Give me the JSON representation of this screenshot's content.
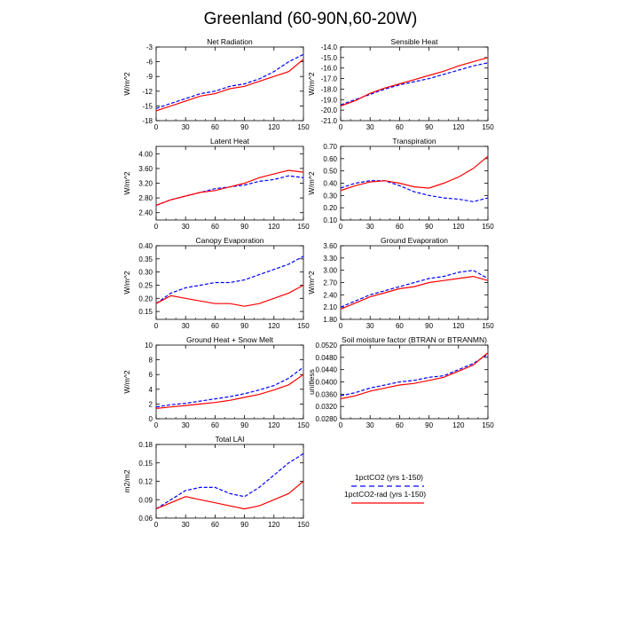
{
  "figure": {
    "title": "Greenland (60-90N,60-20W)"
  },
  "legend": {
    "entries": [
      {
        "label": "1pctCO2 (yrs 1-150)",
        "color": "#0000ff",
        "dash": "dashed"
      },
      {
        "label": "1pctCO2-rad (yrs 1-150)",
        "color": "#ff0000",
        "dash": "solid"
      }
    ]
  },
  "chart_data": [
    {
      "type": "line",
      "title": "Net Radiation",
      "ylabel": "W/m^2",
      "xlim": [
        0,
        150
      ],
      "ylim": [
        -18,
        -3
      ],
      "xticks": [
        0,
        30,
        60,
        90,
        120,
        150
      ],
      "xtick_labels": [
        "0",
        "30",
        "60",
        "90",
        "120",
        "150"
      ],
      "yticks": [
        -18,
        -15,
        -12,
        -9,
        -6,
        -3
      ],
      "ytick_labels": [
        "-18",
        "-15",
        "-12",
        "-9",
        "-6",
        "-3"
      ],
      "grid": false,
      "series": [
        {
          "name": "1pctCO2 (yrs 1-150)",
          "color": "#0000ff",
          "dash": "dashed",
          "x": [
            0,
            15,
            30,
            45,
            60,
            75,
            90,
            105,
            120,
            135,
            150
          ],
          "y": [
            -15.5,
            -14.5,
            -13.5,
            -12.5,
            -12,
            -11,
            -10.5,
            -9.5,
            -8,
            -6,
            -4.5
          ]
        },
        {
          "name": "1pctCO2-rad (yrs 1-150)",
          "color": "#ff0000",
          "dash": "solid",
          "x": [
            0,
            15,
            30,
            45,
            60,
            75,
            90,
            105,
            120,
            135,
            150
          ],
          "y": [
            -16,
            -15,
            -14,
            -13,
            -12.5,
            -11.5,
            -11,
            -10,
            -9,
            -8,
            -5.5
          ]
        }
      ]
    },
    {
      "type": "line",
      "title": "Sensible Heat",
      "ylabel": "W/m^2",
      "xlim": [
        0,
        150
      ],
      "ylim": [
        -21,
        -14
      ],
      "xticks": [
        0,
        30,
        60,
        90,
        120,
        150
      ],
      "xtick_labels": [
        "0",
        "30",
        "60",
        "90",
        "120",
        "150"
      ],
      "yticks": [
        -21,
        -20,
        -19,
        -18,
        -17,
        -16,
        -15,
        -14
      ],
      "ytick_labels": [
        "-21.0",
        "-20.0",
        "-19.0",
        "-18.0",
        "-17.0",
        "-16.0",
        "-15.0",
        "-14.0"
      ],
      "grid": false,
      "series": [
        {
          "name": "1pctCO2 (yrs 1-150)",
          "color": "#0000ff",
          "dash": "dashed",
          "x": [
            0,
            15,
            30,
            45,
            60,
            75,
            90,
            105,
            120,
            135,
            150
          ],
          "y": [
            -19.5,
            -19,
            -18.5,
            -18,
            -17.6,
            -17.3,
            -17,
            -16.6,
            -16.2,
            -15.8,
            -15.5
          ]
        },
        {
          "name": "1pctCO2-rad (yrs 1-150)",
          "color": "#ff0000",
          "dash": "solid",
          "x": [
            0,
            15,
            30,
            45,
            60,
            75,
            90,
            105,
            120,
            135,
            150
          ],
          "y": [
            -19.6,
            -19.1,
            -18.4,
            -17.9,
            -17.5,
            -17.1,
            -16.7,
            -16.3,
            -15.8,
            -15.4,
            -15
          ]
        }
      ]
    },
    {
      "type": "line",
      "title": "Latent Heat",
      "ylabel": "W/m^2",
      "xlim": [
        0,
        150
      ],
      "ylim": [
        2.2,
        4.2
      ],
      "xticks": [
        0,
        30,
        60,
        90,
        120,
        150
      ],
      "xtick_labels": [
        "0",
        "30",
        "60",
        "90",
        "120",
        "150"
      ],
      "yticks": [
        2.4,
        2.8,
        3.2,
        3.6,
        4.0
      ],
      "ytick_labels": [
        "2.40",
        "2.80",
        "3.20",
        "3.60",
        "4.00"
      ],
      "grid": false,
      "series": [
        {
          "name": "1pctCO2 (yrs 1-150)",
          "color": "#0000ff",
          "dash": "dashed",
          "x": [
            0,
            15,
            30,
            45,
            60,
            75,
            90,
            105,
            120,
            135,
            150
          ],
          "y": [
            2.6,
            2.75,
            2.85,
            2.95,
            3.05,
            3.1,
            3.15,
            3.25,
            3.3,
            3.4,
            3.35
          ]
        },
        {
          "name": "1pctCO2-rad (yrs 1-150)",
          "color": "#ff0000",
          "dash": "solid",
          "x": [
            0,
            15,
            30,
            45,
            60,
            75,
            90,
            105,
            120,
            135,
            150
          ],
          "y": [
            2.6,
            2.75,
            2.85,
            2.95,
            3.0,
            3.1,
            3.2,
            3.35,
            3.45,
            3.55,
            3.5
          ]
        }
      ]
    },
    {
      "type": "line",
      "title": "Transpiration",
      "ylabel": "W/m^2",
      "xlim": [
        0,
        150
      ],
      "ylim": [
        0.1,
        0.7
      ],
      "xticks": [
        0,
        30,
        60,
        90,
        120,
        150
      ],
      "xtick_labels": [
        "0",
        "30",
        "60",
        "90",
        "120",
        "150"
      ],
      "yticks": [
        0.1,
        0.2,
        0.3,
        0.4,
        0.5,
        0.6,
        0.7
      ],
      "ytick_labels": [
        "0.10",
        "0.20",
        "0.30",
        "0.40",
        "0.50",
        "0.60",
        "0.70"
      ],
      "grid": false,
      "series": [
        {
          "name": "1pctCO2 (yrs 1-150)",
          "color": "#0000ff",
          "dash": "dashed",
          "x": [
            0,
            15,
            30,
            45,
            60,
            75,
            90,
            105,
            120,
            135,
            150
          ],
          "y": [
            0.36,
            0.4,
            0.42,
            0.42,
            0.38,
            0.33,
            0.3,
            0.28,
            0.27,
            0.25,
            0.28
          ]
        },
        {
          "name": "1pctCO2-rad (yrs 1-150)",
          "color": "#ff0000",
          "dash": "solid",
          "x": [
            0,
            15,
            30,
            45,
            60,
            75,
            90,
            105,
            120,
            135,
            150
          ],
          "y": [
            0.34,
            0.38,
            0.41,
            0.42,
            0.4,
            0.37,
            0.36,
            0.4,
            0.45,
            0.52,
            0.62
          ]
        }
      ]
    },
    {
      "type": "line",
      "title": "Canopy Evaporation",
      "ylabel": "W/m^2",
      "xlim": [
        0,
        150
      ],
      "ylim": [
        0.12,
        0.4
      ],
      "xticks": [
        0,
        30,
        60,
        90,
        120,
        150
      ],
      "xtick_labels": [
        "0",
        "30",
        "60",
        "90",
        "120",
        "150"
      ],
      "yticks": [
        0.15,
        0.2,
        0.25,
        0.3,
        0.35,
        0.4
      ],
      "ytick_labels": [
        "0.15",
        "0.20",
        "0.25",
        "0.30",
        "0.35",
        "0.40"
      ],
      "grid": false,
      "series": [
        {
          "name": "1pctCO2 (yrs 1-150)",
          "color": "#0000ff",
          "dash": "dashed",
          "x": [
            0,
            15,
            30,
            45,
            60,
            75,
            90,
            105,
            120,
            135,
            150
          ],
          "y": [
            0.18,
            0.22,
            0.24,
            0.25,
            0.26,
            0.26,
            0.27,
            0.29,
            0.31,
            0.33,
            0.36
          ]
        },
        {
          "name": "1pctCO2-rad (yrs 1-150)",
          "color": "#ff0000",
          "dash": "solid",
          "x": [
            0,
            15,
            30,
            45,
            60,
            75,
            90,
            105,
            120,
            135,
            150
          ],
          "y": [
            0.18,
            0.21,
            0.2,
            0.19,
            0.18,
            0.18,
            0.17,
            0.18,
            0.2,
            0.22,
            0.25
          ]
        }
      ]
    },
    {
      "type": "line",
      "title": "Ground Evaporation",
      "ylabel": "W/m^2",
      "xlim": [
        0,
        150
      ],
      "ylim": [
        1.8,
        3.6
      ],
      "xticks": [
        0,
        30,
        60,
        90,
        120,
        150
      ],
      "xtick_labels": [
        "0",
        "30",
        "60",
        "90",
        "120",
        "150"
      ],
      "yticks": [
        1.8,
        2.1,
        2.4,
        2.7,
        3.0,
        3.3,
        3.6
      ],
      "ytick_labels": [
        "1.80",
        "2.10",
        "2.40",
        "2.70",
        "3.00",
        "3.30",
        "3.60"
      ],
      "grid": false,
      "series": [
        {
          "name": "1pctCO2 (yrs 1-150)",
          "color": "#0000ff",
          "dash": "dashed",
          "x": [
            0,
            15,
            30,
            45,
            60,
            75,
            90,
            105,
            120,
            135,
            150
          ],
          "y": [
            2.1,
            2.25,
            2.4,
            2.5,
            2.6,
            2.7,
            2.8,
            2.85,
            2.95,
            3.0,
            2.8
          ]
        },
        {
          "name": "1pctCO2-rad (yrs 1-150)",
          "color": "#ff0000",
          "dash": "solid",
          "x": [
            0,
            15,
            30,
            45,
            60,
            75,
            90,
            105,
            120,
            135,
            150
          ],
          "y": [
            2.05,
            2.2,
            2.35,
            2.45,
            2.55,
            2.6,
            2.7,
            2.75,
            2.8,
            2.85,
            2.75
          ]
        }
      ]
    },
    {
      "type": "line",
      "title": "Ground Heat + Snow Melt",
      "ylabel": "W/m^2",
      "xlim": [
        0,
        150
      ],
      "ylim": [
        0,
        10
      ],
      "xticks": [
        0,
        30,
        60,
        90,
        120,
        150
      ],
      "xtick_labels": [
        "0",
        "30",
        "60",
        "90",
        "120",
        "150"
      ],
      "yticks": [
        0,
        2,
        4,
        6,
        8,
        10
      ],
      "ytick_labels": [
        "0",
        "2",
        "4",
        "6",
        "8",
        "10"
      ],
      "grid": false,
      "series": [
        {
          "name": "1pctCO2 (yrs 1-150)",
          "color": "#0000ff",
          "dash": "dashed",
          "x": [
            0,
            15,
            30,
            45,
            60,
            75,
            90,
            105,
            120,
            135,
            150
          ],
          "y": [
            1.6,
            1.9,
            2.1,
            2.4,
            2.7,
            3.0,
            3.4,
            3.9,
            4.5,
            5.5,
            7.0
          ]
        },
        {
          "name": "1pctCO2-rad (yrs 1-150)",
          "color": "#ff0000",
          "dash": "solid",
          "x": [
            0,
            15,
            30,
            45,
            60,
            75,
            90,
            105,
            120,
            135,
            150
          ],
          "y": [
            1.4,
            1.6,
            1.8,
            2.0,
            2.2,
            2.5,
            2.9,
            3.3,
            3.9,
            4.6,
            6.0
          ]
        }
      ]
    },
    {
      "type": "line",
      "title": "Soil moisture factor (BTRAN or BTRANMN)",
      "ylabel": "unitless",
      "xlim": [
        0,
        150
      ],
      "ylim": [
        0.028,
        0.052
      ],
      "xticks": [
        0,
        30,
        60,
        90,
        120,
        150
      ],
      "xtick_labels": [
        "0",
        "30",
        "60",
        "90",
        "120",
        "150"
      ],
      "yticks": [
        0.028,
        0.032,
        0.036,
        0.04,
        0.044,
        0.048,
        0.052
      ],
      "ytick_labels": [
        "0.0280",
        "0.0320",
        "0.0360",
        "0.0400",
        "0.0440",
        "0.0480",
        "0.0520"
      ],
      "grid": false,
      "series": [
        {
          "name": "1pctCO2 (yrs 1-150)",
          "color": "#0000ff",
          "dash": "dashed",
          "x": [
            0,
            15,
            30,
            45,
            60,
            75,
            90,
            105,
            120,
            135,
            150
          ],
          "y": [
            0.0355,
            0.0365,
            0.038,
            0.039,
            0.04,
            0.0405,
            0.0415,
            0.042,
            0.044,
            0.046,
            0.049
          ]
        },
        {
          "name": "1pctCO2-rad (yrs 1-150)",
          "color": "#ff0000",
          "dash": "solid",
          "x": [
            0,
            15,
            30,
            45,
            60,
            75,
            90,
            105,
            120,
            135,
            150
          ],
          "y": [
            0.0345,
            0.0355,
            0.037,
            0.038,
            0.039,
            0.0395,
            0.0405,
            0.0415,
            0.0435,
            0.0455,
            0.0495
          ]
        }
      ]
    },
    {
      "type": "line",
      "title": "Total LAI",
      "ylabel": "m2/m2",
      "xlim": [
        0,
        150
      ],
      "ylim": [
        0.06,
        0.18
      ],
      "xticks": [
        0,
        30,
        60,
        90,
        120,
        150
      ],
      "xtick_labels": [
        "0",
        "30",
        "60",
        "90",
        "120",
        "150"
      ],
      "yticks": [
        0.06,
        0.09,
        0.12,
        0.15,
        0.18
      ],
      "ytick_labels": [
        "0.06",
        "0.09",
        "0.12",
        "0.15",
        "0.18"
      ],
      "grid": false,
      "series": [
        {
          "name": "1pctCO2 (yrs 1-150)",
          "color": "#0000ff",
          "dash": "dashed",
          "x": [
            0,
            15,
            30,
            45,
            60,
            75,
            90,
            105,
            120,
            135,
            150
          ],
          "y": [
            0.075,
            0.09,
            0.105,
            0.11,
            0.11,
            0.1,
            0.095,
            0.11,
            0.13,
            0.15,
            0.165
          ]
        },
        {
          "name": "1pctCO2-rad (yrs 1-150)",
          "color": "#ff0000",
          "dash": "solid",
          "x": [
            0,
            15,
            30,
            45,
            60,
            75,
            90,
            105,
            120,
            135,
            150
          ],
          "y": [
            0.075,
            0.085,
            0.095,
            0.09,
            0.085,
            0.08,
            0.075,
            0.08,
            0.09,
            0.1,
            0.12
          ]
        }
      ]
    }
  ]
}
